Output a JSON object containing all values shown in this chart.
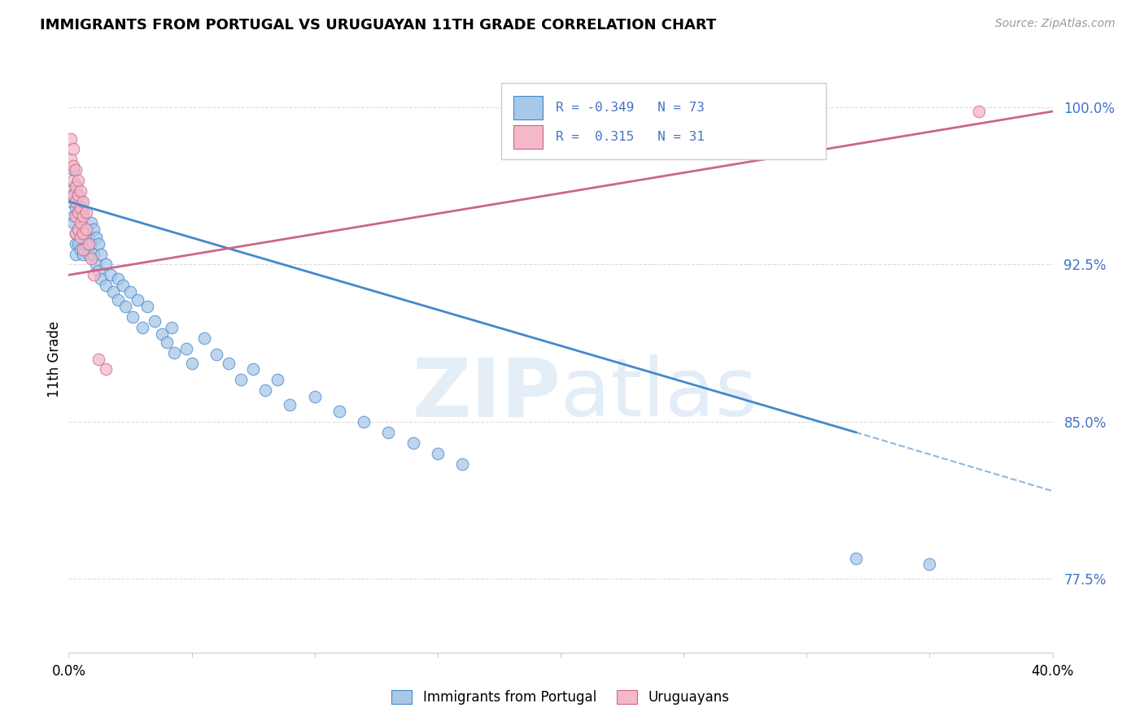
{
  "title": "IMMIGRANTS FROM PORTUGAL VS URUGUAYAN 11TH GRADE CORRELATION CHART",
  "source": "Source: ZipAtlas.com",
  "ylabel": "11th Grade",
  "legend_r_blue": "-0.349",
  "legend_n_blue": "73",
  "legend_r_pink": "0.315",
  "legend_n_pink": "31",
  "blue_color": "#a8c8e8",
  "pink_color": "#f4b8c8",
  "blue_line_color": "#4488cc",
  "pink_line_color": "#cc6688",
  "blue_scatter": [
    [
      0.001,
      0.96
    ],
    [
      0.001,
      0.955
    ],
    [
      0.002,
      0.97
    ],
    [
      0.002,
      0.958
    ],
    [
      0.002,
      0.948
    ],
    [
      0.002,
      0.945
    ],
    [
      0.003,
      0.963
    ],
    [
      0.003,
      0.952
    ],
    [
      0.003,
      0.94
    ],
    [
      0.003,
      0.935
    ],
    [
      0.003,
      0.93
    ],
    [
      0.004,
      0.958
    ],
    [
      0.004,
      0.95
    ],
    [
      0.004,
      0.942
    ],
    [
      0.004,
      0.935
    ],
    [
      0.005,
      0.955
    ],
    [
      0.005,
      0.948
    ],
    [
      0.005,
      0.94
    ],
    [
      0.005,
      0.932
    ],
    [
      0.006,
      0.95
    ],
    [
      0.006,
      0.94
    ],
    [
      0.006,
      0.93
    ],
    [
      0.007,
      0.942
    ],
    [
      0.007,
      0.935
    ],
    [
      0.008,
      0.938
    ],
    [
      0.008,
      0.93
    ],
    [
      0.009,
      0.945
    ],
    [
      0.009,
      0.935
    ],
    [
      0.01,
      0.942
    ],
    [
      0.01,
      0.93
    ],
    [
      0.011,
      0.938
    ],
    [
      0.011,
      0.925
    ],
    [
      0.012,
      0.935
    ],
    [
      0.012,
      0.922
    ],
    [
      0.013,
      0.93
    ],
    [
      0.013,
      0.918
    ],
    [
      0.015,
      0.925
    ],
    [
      0.015,
      0.915
    ],
    [
      0.017,
      0.92
    ],
    [
      0.018,
      0.912
    ],
    [
      0.02,
      0.918
    ],
    [
      0.02,
      0.908
    ],
    [
      0.022,
      0.915
    ],
    [
      0.023,
      0.905
    ],
    [
      0.025,
      0.912
    ],
    [
      0.026,
      0.9
    ],
    [
      0.028,
      0.908
    ],
    [
      0.03,
      0.895
    ],
    [
      0.032,
      0.905
    ],
    [
      0.035,
      0.898
    ],
    [
      0.038,
      0.892
    ],
    [
      0.04,
      0.888
    ],
    [
      0.042,
      0.895
    ],
    [
      0.043,
      0.883
    ],
    [
      0.048,
      0.885
    ],
    [
      0.05,
      0.878
    ],
    [
      0.055,
      0.89
    ],
    [
      0.06,
      0.882
    ],
    [
      0.065,
      0.878
    ],
    [
      0.07,
      0.87
    ],
    [
      0.075,
      0.875
    ],
    [
      0.08,
      0.865
    ],
    [
      0.085,
      0.87
    ],
    [
      0.09,
      0.858
    ],
    [
      0.1,
      0.862
    ],
    [
      0.11,
      0.855
    ],
    [
      0.12,
      0.85
    ],
    [
      0.13,
      0.845
    ],
    [
      0.14,
      0.84
    ],
    [
      0.15,
      0.835
    ],
    [
      0.16,
      0.83
    ],
    [
      0.32,
      0.785
    ],
    [
      0.35,
      0.782
    ]
  ],
  "pink_scatter": [
    [
      0.001,
      0.985
    ],
    [
      0.001,
      0.975
    ],
    [
      0.002,
      0.98
    ],
    [
      0.002,
      0.972
    ],
    [
      0.002,
      0.965
    ],
    [
      0.002,
      0.958
    ],
    [
      0.003,
      0.97
    ],
    [
      0.003,
      0.962
    ],
    [
      0.003,
      0.955
    ],
    [
      0.003,
      0.948
    ],
    [
      0.003,
      0.94
    ],
    [
      0.004,
      0.965
    ],
    [
      0.004,
      0.958
    ],
    [
      0.004,
      0.95
    ],
    [
      0.004,
      0.942
    ],
    [
      0.005,
      0.96
    ],
    [
      0.005,
      0.952
    ],
    [
      0.005,
      0.945
    ],
    [
      0.005,
      0.938
    ],
    [
      0.006,
      0.955
    ],
    [
      0.006,
      0.948
    ],
    [
      0.006,
      0.94
    ],
    [
      0.006,
      0.932
    ],
    [
      0.007,
      0.95
    ],
    [
      0.007,
      0.942
    ],
    [
      0.008,
      0.935
    ],
    [
      0.009,
      0.928
    ],
    [
      0.01,
      0.92
    ],
    [
      0.012,
      0.88
    ],
    [
      0.015,
      0.875
    ],
    [
      0.37,
      0.998
    ]
  ],
  "xlim": [
    0.0,
    0.4
  ],
  "ylim": [
    0.74,
    1.02
  ],
  "yticks": [
    0.775,
    0.85,
    0.925,
    1.0
  ],
  "ytick_labels": [
    "77.5%",
    "85.0%",
    "92.5%",
    "100.0%"
  ],
  "blue_line": [
    [
      0.0,
      0.955
    ],
    [
      0.32,
      0.845
    ]
  ],
  "blue_dashed_line": [
    [
      0.32,
      0.845
    ],
    [
      0.4,
      0.817
    ]
  ],
  "pink_line": [
    [
      0.0,
      0.92
    ],
    [
      0.4,
      0.998
    ]
  ]
}
